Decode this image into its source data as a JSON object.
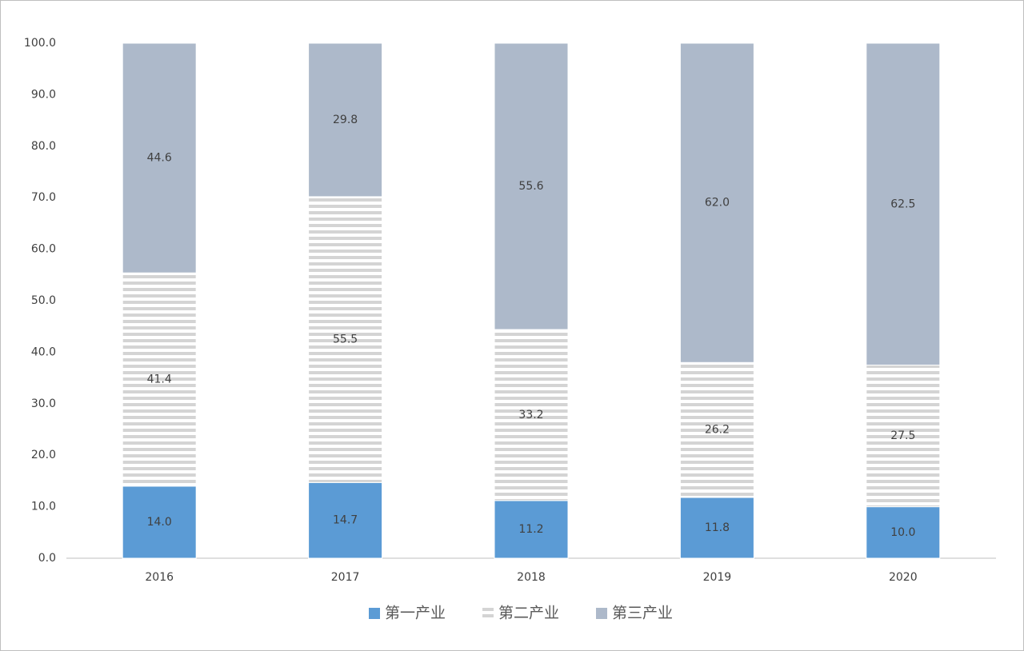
{
  "chart_data": {
    "type": "stacked-bar",
    "categories": [
      "2016",
      "2017",
      "2018",
      "2019",
      "2020"
    ],
    "series": [
      {
        "name": "第一产业",
        "color": "#5b9bd5",
        "values": [
          14.0,
          14.7,
          11.2,
          11.8,
          10.0
        ],
        "value_labels": [
          "14.0",
          "14.7",
          "11.2",
          "11.8",
          "10.0"
        ]
      },
      {
        "name": "第二产业",
        "color": "#d4d4d4",
        "pattern": "horizontal-stripes",
        "values": [
          41.4,
          55.5,
          33.2,
          26.2,
          27.5
        ],
        "value_labels": [
          "41.4",
          "55.5",
          "33.2",
          "26.2",
          "27.5"
        ]
      },
      {
        "name": "第三产业",
        "color": "#adb9ca",
        "values": [
          44.6,
          29.8,
          55.6,
          62.0,
          62.5
        ],
        "value_labels": [
          "44.6",
          "29.8",
          "55.6",
          "62.0",
          "62.5"
        ]
      }
    ],
    "ylim": [
      0,
      100
    ],
    "yticks": [
      {
        "value": 0,
        "label": "0.0"
      },
      {
        "value": 10,
        "label": "10.0"
      },
      {
        "value": 20,
        "label": "20.0"
      },
      {
        "value": 30,
        "label": "30.0"
      },
      {
        "value": 40,
        "label": "40.0"
      },
      {
        "value": 50,
        "label": "50.0"
      },
      {
        "value": 60,
        "label": "60.0"
      },
      {
        "value": 70,
        "label": "70.0"
      },
      {
        "value": 80,
        "label": "80.0"
      },
      {
        "value": 90,
        "label": "90.0"
      },
      {
        "value": 100,
        "label": "100.0"
      }
    ],
    "grid": false,
    "legend": "bottom"
  }
}
